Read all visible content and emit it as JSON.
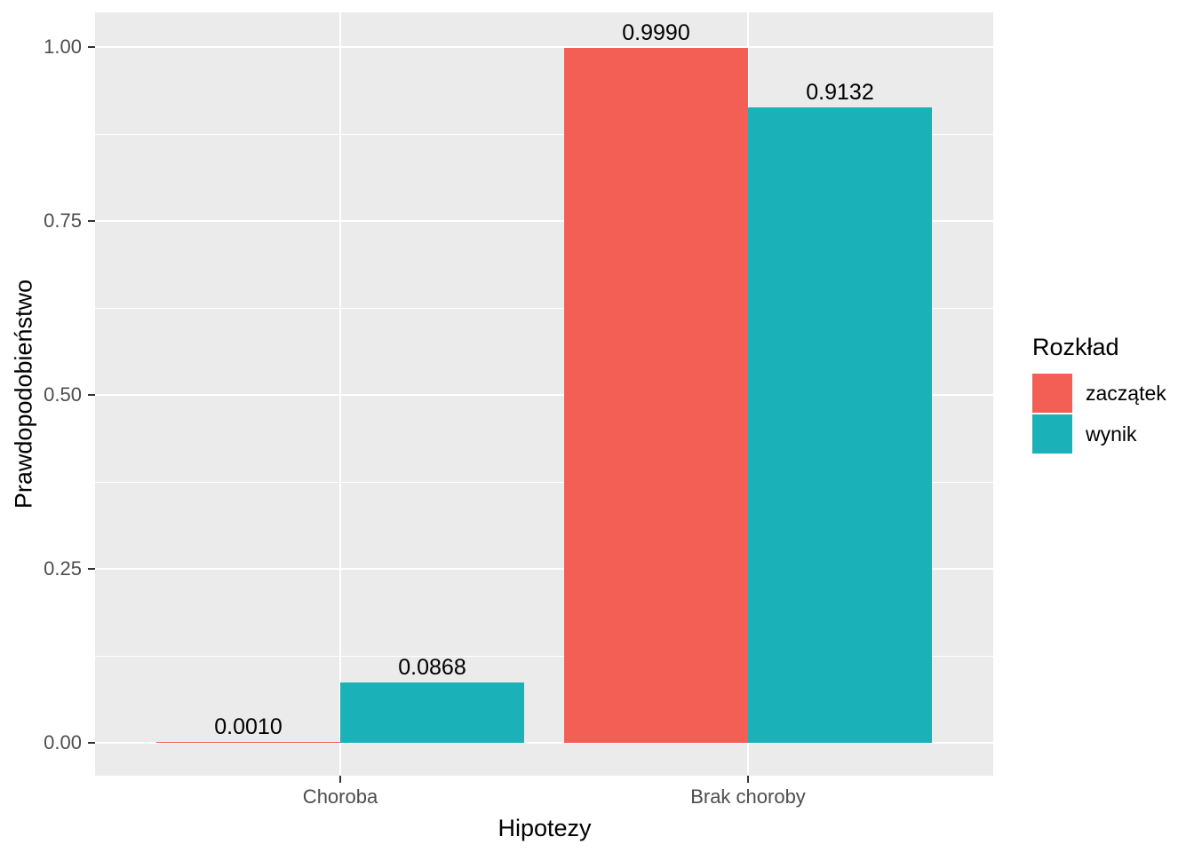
{
  "chart_data": {
    "type": "bar",
    "orientation": "vertical",
    "grouping": "dodged",
    "categories": [
      "Choroba",
      "Brak choroby"
    ],
    "series": [
      {
        "name": "zaczątek",
        "color": "#F35E55",
        "values": [
          0.001,
          0.999
        ],
        "value_labels": [
          "0.0010",
          "0.9990"
        ]
      },
      {
        "name": "wynik",
        "color": "#1AB2B8",
        "values": [
          0.0868,
          0.9132
        ],
        "value_labels": [
          "0.0868",
          "0.9132"
        ]
      }
    ],
    "title": "",
    "xlabel": "Hipotezy",
    "ylabel": "Prawdopodobieństwo",
    "ylim": [
      0,
      1
    ],
    "ytick_labels": [
      "0.00",
      "0.25",
      "0.50",
      "0.75",
      "1.00"
    ],
    "ytick_values": [
      0,
      0.25,
      0.5,
      0.75,
      1.0
    ],
    "legend": {
      "title": "Rozkład",
      "position": "right",
      "items": [
        "zaczątek",
        "wynik"
      ]
    },
    "grid": "on",
    "panel_bg": "#EBEBEB",
    "gridline_color": "#FFFFFF",
    "tick_color": "#333333",
    "tick_text_color": "#4D4D4D"
  }
}
